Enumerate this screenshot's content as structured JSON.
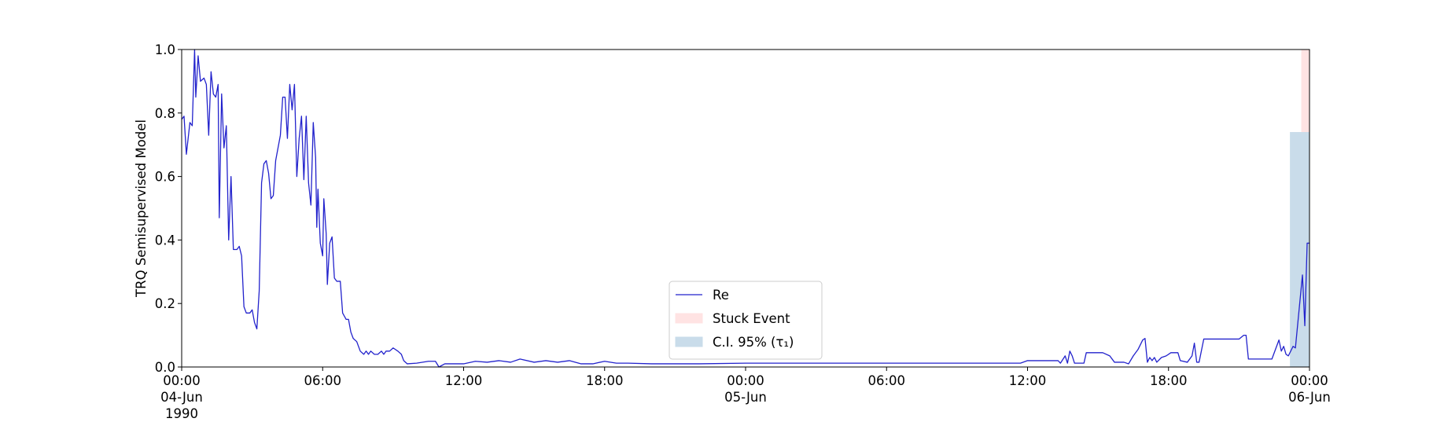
{
  "chart_data": {
    "type": "line",
    "ylabel": "TRQ Semisupervised Model",
    "xlim": [
      "1990-06-04 00:00",
      "1990-06-06 00:00"
    ],
    "ylim": [
      0,
      1
    ],
    "yticks": [
      {
        "value": 0,
        "label": "0.0"
      },
      0.2,
      0.4,
      0.6,
      0.8,
      {
        "value": 1,
        "label": "1.0"
      }
    ],
    "xticks": [
      {
        "value": "1990-06-04 00:00",
        "label": "00:00\n04-Jun\n1990"
      },
      {
        "value": "1990-06-04 06:00",
        "label": "06:00"
      },
      {
        "value": "1990-06-04 12:00",
        "label": "12:00"
      },
      {
        "value": "1990-06-04 18:00",
        "label": "18:00"
      },
      {
        "value": "1990-06-05 00:00",
        "label": "00:00\n05-Jun"
      },
      {
        "value": "1990-06-05 06:00",
        "label": "06:00"
      },
      {
        "value": "1990-06-05 12:00",
        "label": "12:00"
      },
      {
        "value": "1990-06-05 18:00",
        "label": "18:00"
      },
      {
        "value": "1990-06-06 00:00",
        "label": "00:00\n06-Jun"
      }
    ],
    "legend": "lower center",
    "grid": false,
    "spans": [
      {
        "name": "Stuck Event",
        "color": "#ffe3e3",
        "start": "1990-06-05 23:39",
        "end": "1990-06-06 00:00"
      },
      {
        "name": "C.I. 95% (τ₁)",
        "color": "#c9dcea",
        "start": "1990-06-05 23:10",
        "end": "1990-06-06 00:00",
        "top": 0.74
      }
    ],
    "series": [
      {
        "name": "Re",
        "color": "#2222cc",
        "x": [
          "1990-06-04 00:00",
          "1990-06-04 00:06",
          "1990-06-04 00:12",
          "1990-06-04 00:21",
          "1990-06-04 00:27",
          "1990-06-04 00:33",
          "1990-06-04 00:36",
          "1990-06-04 00:42",
          "1990-06-04 00:48",
          "1990-06-04 00:57",
          "1990-06-04 01:03",
          "1990-06-04 01:09",
          "1990-06-04 01:15",
          "1990-06-04 01:21",
          "1990-06-04 01:27",
          "1990-06-04 01:33",
          "1990-06-04 01:36",
          "1990-06-04 01:42",
          "1990-06-04 01:48",
          "1990-06-04 01:54",
          "1990-06-04 02:00",
          "1990-06-04 02:06",
          "1990-06-04 02:12",
          "1990-06-04 02:21",
          "1990-06-04 02:27",
          "1990-06-04 02:33",
          "1990-06-04 02:39",
          "1990-06-04 02:45",
          "1990-06-04 02:54",
          "1990-06-04 03:00",
          "1990-06-04 03:06",
          "1990-06-04 03:12",
          "1990-06-04 03:18",
          "1990-06-04 03:24",
          "1990-06-04 03:30",
          "1990-06-04 03:36",
          "1990-06-04 03:42",
          "1990-06-04 03:48",
          "1990-06-04 03:54",
          "1990-06-04 04:00",
          "1990-06-04 04:12",
          "1990-06-04 04:18",
          "1990-06-04 04:24",
          "1990-06-04 04:30",
          "1990-06-04 04:36",
          "1990-06-04 04:42",
          "1990-06-04 04:48",
          "1990-06-04 04:54",
          "1990-06-04 05:00",
          "1990-06-04 05:06",
          "1990-06-04 05:12",
          "1990-06-04 05:18",
          "1990-06-04 05:24",
          "1990-06-04 05:30",
          "1990-06-04 05:36",
          "1990-06-04 05:42",
          "1990-06-04 05:45",
          "1990-06-04 05:48",
          "1990-06-04 05:54",
          "1990-06-04 06:00",
          "1990-06-04 06:03",
          "1990-06-04 06:09",
          "1990-06-04 06:12",
          "1990-06-04 06:18",
          "1990-06-04 06:24",
          "1990-06-04 06:30",
          "1990-06-04 06:36",
          "1990-06-04 06:45",
          "1990-06-04 06:51",
          "1990-06-04 07:00",
          "1990-06-04 07:06",
          "1990-06-04 07:12",
          "1990-06-04 07:18",
          "1990-06-04 07:27",
          "1990-06-04 07:36",
          "1990-06-04 07:45",
          "1990-06-04 07:51",
          "1990-06-04 07:57",
          "1990-06-04 08:03",
          "1990-06-04 08:12",
          "1990-06-04 08:21",
          "1990-06-04 08:30",
          "1990-06-04 08:36",
          "1990-06-04 08:42",
          "1990-06-04 08:51",
          "1990-06-04 09:00",
          "1990-06-04 09:12",
          "1990-06-04 09:21",
          "1990-06-04 09:27",
          "1990-06-04 09:36",
          "1990-06-04 10:00",
          "1990-06-04 10:30",
          "1990-06-04 10:48",
          "1990-06-04 10:57",
          "1990-06-04 11:12",
          "1990-06-04 11:36",
          "1990-06-04 12:00",
          "1990-06-04 12:30",
          "1990-06-04 13:00",
          "1990-06-04 13:30",
          "1990-06-04 14:00",
          "1990-06-04 14:24",
          "1990-06-04 15:00",
          "1990-06-04 15:30",
          "1990-06-04 16:00",
          "1990-06-04 16:30",
          "1990-06-04 17:00",
          "1990-06-04 17:30",
          "1990-06-04 18:00",
          "1990-06-04 18:30",
          "1990-06-04 19:00",
          "1990-06-04 20:00",
          "1990-06-04 22:00",
          "1990-06-05 00:00",
          "1990-06-05 11:42",
          "1990-06-05 12:00",
          "1990-06-05 13:18",
          "1990-06-05 13:24",
          "1990-06-05 13:36",
          "1990-06-05 13:42",
          "1990-06-05 13:48",
          "1990-06-05 13:54",
          "1990-06-05 14:00",
          "1990-06-05 14:24",
          "1990-06-05 14:30",
          "1990-06-05 15:12",
          "1990-06-05 15:30",
          "1990-06-05 15:42",
          "1990-06-05 16:06",
          "1990-06-05 16:18",
          "1990-06-05 16:30",
          "1990-06-05 16:42",
          "1990-06-05 16:54",
          "1990-06-05 17:00",
          "1990-06-05 17:06",
          "1990-06-05 17:12",
          "1990-06-05 17:18",
          "1990-06-05 17:24",
          "1990-06-05 17:30",
          "1990-06-05 17:42",
          "1990-06-05 17:54",
          "1990-06-05 18:06",
          "1990-06-05 18:24",
          "1990-06-05 18:30",
          "1990-06-05 18:48",
          "1990-06-05 19:00",
          "1990-06-05 19:06",
          "1990-06-05 19:12",
          "1990-06-05 19:18",
          "1990-06-05 19:30",
          "1990-06-05 21:00",
          "1990-06-05 21:12",
          "1990-06-05 21:18",
          "1990-06-05 21:24",
          "1990-06-05 22:24",
          "1990-06-05 22:42",
          "1990-06-05 22:48",
          "1990-06-05 22:54",
          "1990-06-05 23:00",
          "1990-06-05 23:06",
          "1990-06-05 23:18",
          "1990-06-05 23:24",
          "1990-06-05 23:42",
          "1990-06-05 23:48",
          "1990-06-05 23:54",
          "1990-06-06 00:00"
        ],
        "values": [
          0.78,
          0.79,
          0.67,
          0.77,
          0.76,
          1.0,
          0.85,
          0.98,
          0.9,
          0.91,
          0.89,
          0.73,
          0.93,
          0.86,
          0.85,
          0.89,
          0.47,
          0.86,
          0.69,
          0.76,
          0.4,
          0.6,
          0.37,
          0.37,
          0.38,
          0.35,
          0.19,
          0.17,
          0.17,
          0.18,
          0.14,
          0.12,
          0.24,
          0.58,
          0.64,
          0.65,
          0.61,
          0.53,
          0.54,
          0.65,
          0.73,
          0.85,
          0.85,
          0.72,
          0.89,
          0.81,
          0.89,
          0.6,
          0.72,
          0.79,
          0.59,
          0.79,
          0.58,
          0.51,
          0.77,
          0.66,
          0.44,
          0.56,
          0.39,
          0.35,
          0.53,
          0.42,
          0.26,
          0.39,
          0.41,
          0.28,
          0.27,
          0.27,
          0.17,
          0.15,
          0.15,
          0.11,
          0.09,
          0.08,
          0.05,
          0.04,
          0.05,
          0.04,
          0.05,
          0.04,
          0.04,
          0.05,
          0.04,
          0.05,
          0.05,
          0.06,
          0.05,
          0.04,
          0.02,
          0.01,
          0.012,
          0.018,
          0.018,
          0.0,
          0.01,
          0.01,
          0.01,
          0.018,
          0.015,
          0.02,
          0.015,
          0.025,
          0.015,
          0.02,
          0.015,
          0.02,
          0.01,
          0.01,
          0.018,
          0.012,
          0.012,
          0.01,
          0.01,
          0.012,
          0.012,
          0.02,
          0.02,
          0.012,
          0.035,
          0.012,
          0.05,
          0.035,
          0.012,
          0.012,
          0.045,
          0.045,
          0.035,
          0.015,
          0.015,
          0.01,
          0.035,
          0.055,
          0.085,
          0.09,
          0.015,
          0.03,
          0.02,
          0.03,
          0.015,
          0.03,
          0.035,
          0.045,
          0.045,
          0.02,
          0.015,
          0.035,
          0.075,
          0.015,
          0.015,
          0.088,
          0.088,
          0.1,
          0.1,
          0.025,
          0.025,
          0.085,
          0.05,
          0.065,
          0.04,
          0.035,
          0.065,
          0.06,
          0.29,
          0.13,
          0.39,
          0.39
        ]
      }
    ]
  }
}
